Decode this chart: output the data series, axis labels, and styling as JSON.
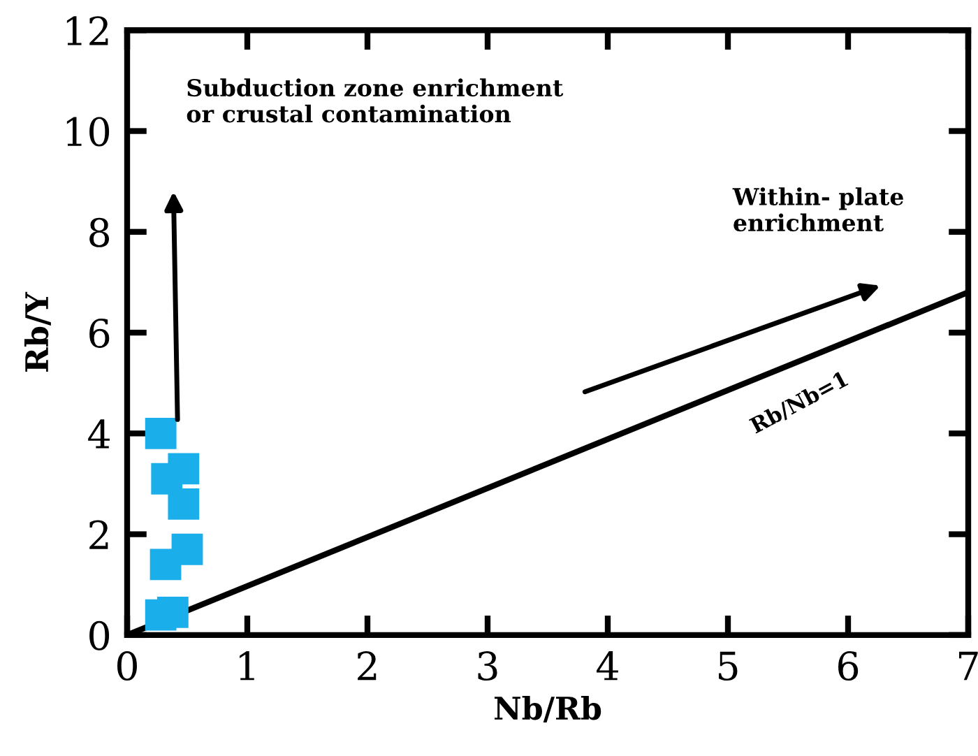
{
  "chart_data": {
    "type": "scatter",
    "xlabel": "Nb/Rb",
    "ylabel": "Rb/Y",
    "xlim": [
      0,
      7
    ],
    "ylim": [
      0,
      12
    ],
    "xticks": [
      0,
      1,
      2,
      3,
      4,
      5,
      6,
      7
    ],
    "yticks": [
      0,
      2,
      4,
      6,
      8,
      10,
      12
    ],
    "grid": false,
    "marker": "square",
    "series": [
      {
        "color": "#1aaeea",
        "x": [
          0.28,
          0.47,
          0.33,
          0.47,
          0.5,
          0.32,
          0.38,
          0.28
        ],
        "values": [
          4.0,
          3.3,
          3.1,
          2.6,
          1.7,
          1.4,
          0.45,
          0.4
        ]
      },
      {
        "name": "Rb/Nb=1",
        "type": "line",
        "color": "#000000",
        "marker": "none",
        "x": [
          0,
          7
        ],
        "values": [
          0,
          6.8
        ]
      }
    ],
    "annotations": [
      "Subduction zone enrichment\nor crustal contamination",
      "Within- plate\nenrichment"
    ]
  }
}
